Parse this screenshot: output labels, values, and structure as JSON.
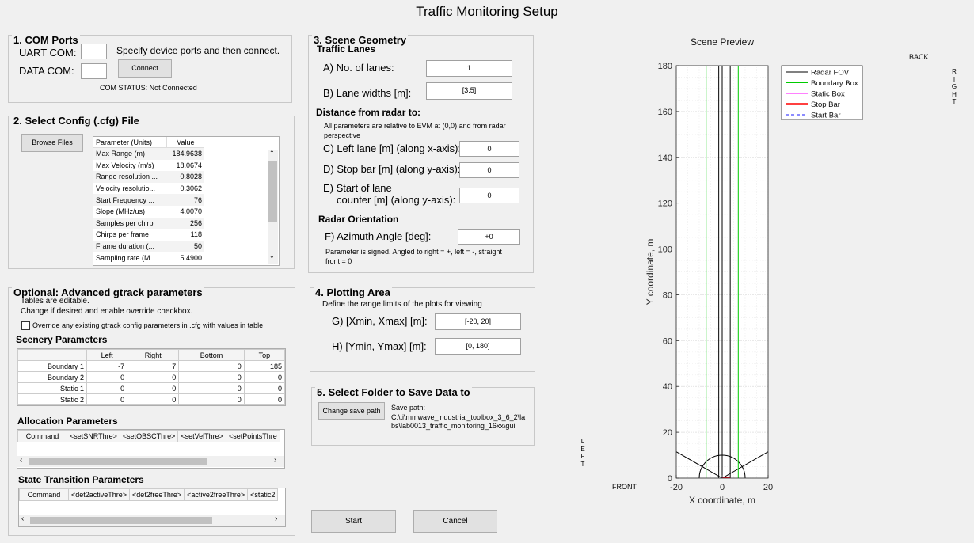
{
  "window_title": "Traffic Monitoring Setup",
  "com_ports": {
    "title": "1. COM Ports",
    "uart_label": "UART COM:",
    "data_label": "DATA COM:",
    "uart_value": "",
    "data_value": "",
    "hint": "Specify device ports and then connect.",
    "connect_label": "Connect",
    "status": "COM STATUS: Not Connected"
  },
  "config": {
    "title": "2. Select Config (.cfg) File",
    "browse_label": "Browse Files",
    "headers": [
      "Parameter (Units)",
      "Value"
    ],
    "rows": [
      [
        "Max Range (m)",
        "184.9638"
      ],
      [
        "Max Velocity (m/s)",
        "18.0674"
      ],
      [
        "Range resolution ...",
        "0.8028"
      ],
      [
        "Velocity resolutio...",
        "0.3062"
      ],
      [
        "Start Frequency ...",
        "76"
      ],
      [
        "Slope (MHz/us)",
        "4.0070"
      ],
      [
        "Samples per chirp",
        "256"
      ],
      [
        "Chirps per frame",
        "118"
      ],
      [
        "Frame duration (...",
        "50"
      ],
      [
        "Sampling rate (M...",
        "5.4900"
      ]
    ]
  },
  "gtrack": {
    "title": "Optional: Advanced gtrack parameters",
    "note1": "Tables are editable.",
    "note2": "Change if desired and enable override checkbox.",
    "override_label": "Override any existing gtrack config parameters in .cfg with values in table",
    "override_checked": false,
    "scenery_title": "Scenery Parameters",
    "scenery_headers": [
      "",
      "Left",
      "Right",
      "Bottom",
      "Top"
    ],
    "scenery_rows": [
      [
        "Boundary 1",
        "-7",
        "7",
        "0",
        "185"
      ],
      [
        "Boundary 2",
        "0",
        "0",
        "0",
        "0"
      ],
      [
        "Static 1",
        "0",
        "0",
        "0",
        "0"
      ],
      [
        "Static 2",
        "0",
        "0",
        "0",
        "0"
      ]
    ],
    "allocation_title": "Allocation Parameters",
    "allocation_headers": [
      "Command",
      "<setSNRThre>",
      "<setOBSCThre>",
      "<setVelThre>",
      "<setPointsThre"
    ],
    "state_title": "State Transition Parameters",
    "state_headers": [
      "Command",
      "<det2activeThre>",
      "<det2freeThre>",
      "<active2freeThre>",
      "<static2"
    ]
  },
  "scene": {
    "title": "3. Scene Geometry",
    "traffic_lanes": "Traffic Lanes",
    "lanes_label": "A) No. of lanes:",
    "lanes_value": "1",
    "widths_label": "B) Lane widths [m]:",
    "widths_value": "[3.5]",
    "distance_title": "Distance from radar to:",
    "distance_note": "All parameters are relative to EVM at (0,0) and from radar perspective",
    "left_lane_label": "C) Left lane [m] (along x-axis):",
    "left_lane_value": "0",
    "stop_bar_label": "D) Stop bar [m] (along y-axis):",
    "stop_bar_value": "0",
    "start_lane_label1": "E) Start of lane",
    "start_lane_label2": "counter [m] (along y-axis):",
    "start_lane_value": "0",
    "orientation_title": "Radar Orientation",
    "azimuth_label": "F) Azimuth Angle [deg]:",
    "azimuth_value": "+0",
    "azimuth_note": "Parameter is signed. Angled to right = +, left = -, straight front = 0"
  },
  "plotting": {
    "title": "4. Plotting Area",
    "note": "Define the range limits of the plots for viewing",
    "x_label": "G) [Xmin, Xmax] [m]:",
    "x_value": "[-20, 20]",
    "y_label": "H) [Ymin, Ymax] [m]:",
    "y_value": "[0, 180]"
  },
  "save": {
    "title": "5. Select Folder to Save Data to",
    "button_label": "Change save path",
    "path_label": "Save path:",
    "path_line1": "C:\\ti\\mmwave_industrial_toolbox_3_6_2\\la",
    "path_line2": "bs\\lab0013_traffic_monitoring_16xx\\gui"
  },
  "actions": {
    "start_label": "Start",
    "cancel_label": "Cancel"
  },
  "preview": {
    "title": "Scene Preview",
    "back": "BACK",
    "front": "FRONT",
    "left_letters": [
      "L",
      "E",
      "F",
      "T"
    ],
    "right_letters": [
      "R",
      "I",
      "G",
      "H",
      "T"
    ]
  },
  "chart_data": {
    "type": "line",
    "title": "Scene Preview",
    "xlabel": "X coordinate, m",
    "ylabel": "Y coordinate, m",
    "xlim": [
      -20,
      20
    ],
    "ylim": [
      0,
      180
    ],
    "xticks": [
      -20,
      0,
      20
    ],
    "yticks": [
      0,
      20,
      40,
      60,
      80,
      100,
      120,
      140,
      160,
      180
    ],
    "grid": true,
    "legend_position": "right",
    "series": [
      {
        "name": "Radar FOV",
        "color": "#000000",
        "dash": false,
        "segments": [
          [
            [
              -20,
              11.5
            ],
            [
              0,
              0
            ],
            [
              20,
              11.5
            ]
          ],
          [
            [
              0,
              0
            ],
            [
              0,
              180
            ]
          ],
          [
            [
              3.5,
              0
            ],
            [
              3.5,
              180
            ]
          ],
          [
            [
              -1.5,
              180
            ],
            [
              -1.5,
              0
            ]
          ]
        ],
        "arc_radius": 10
      },
      {
        "name": "Boundary Box",
        "color": "#00cc00",
        "dash": false,
        "segments": [
          [
            [
              -7,
              0
            ],
            [
              -7,
              180
            ]
          ],
          [
            [
              7,
              0
            ],
            [
              7,
              180
            ]
          ]
        ]
      },
      {
        "name": "Static Box",
        "color": "#ff00ff",
        "dash": false,
        "segments": [
          [
            [
              -0.5,
              0
            ],
            [
              1.5,
              0
            ]
          ]
        ]
      },
      {
        "name": "Stop Bar",
        "color": "#ff0000",
        "dash": false,
        "thick": true,
        "segments": [
          [
            [
              0,
              0
            ],
            [
              3.5,
              0
            ]
          ]
        ]
      },
      {
        "name": "Start Bar",
        "color": "#1a1aff",
        "dash": true,
        "segments": [
          [
            [
              0,
              0
            ],
            [
              3.5,
              0
            ]
          ]
        ]
      }
    ]
  }
}
